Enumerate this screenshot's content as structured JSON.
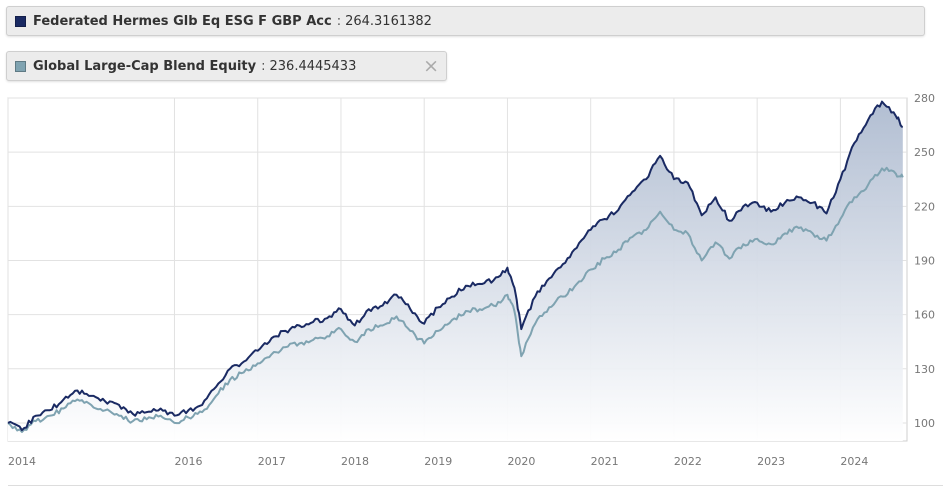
{
  "legend": [
    {
      "name": "Federated Hermes Glb Eq ESG F GBP Acc",
      "separator": ":",
      "value": "264.3161382",
      "color": "#1a2a63"
    },
    {
      "name": "Global Large-Cap Blend Equity",
      "separator": ":",
      "value": "236.4445433",
      "color": "#7fa3b1"
    }
  ],
  "close_icon": "×",
  "chart_data": {
    "type": "line",
    "x_tick_labels": [
      "2014",
      "2016",
      "2017",
      "2018",
      "2019",
      "2020",
      "2021",
      "2022",
      "2023",
      "2024"
    ],
    "y_ticks": [
      100,
      130,
      160,
      190,
      220,
      250,
      280
    ],
    "ylim": [
      90,
      280
    ],
    "grid": true,
    "y_axis_side": "right",
    "area_fill_under_first_series": true,
    "series": [
      {
        "name": "Federated Hermes Glb Eq ESG F GBP Acc",
        "color": "#1a2a63",
        "points": [
          [
            "2014-01",
            100
          ],
          [
            "2014-03",
            96
          ],
          [
            "2014-05",
            104
          ],
          [
            "2014-07",
            107
          ],
          [
            "2014-09",
            113
          ],
          [
            "2014-11",
            118
          ],
          [
            "2015-01",
            115
          ],
          [
            "2015-03",
            112
          ],
          [
            "2015-05",
            110
          ],
          [
            "2015-07",
            105
          ],
          [
            "2015-09",
            106
          ],
          [
            "2015-11",
            108
          ],
          [
            "2016-01",
            104
          ],
          [
            "2016-03",
            107
          ],
          [
            "2016-05",
            110
          ],
          [
            "2016-07",
            120
          ],
          [
            "2016-09",
            130
          ],
          [
            "2016-11",
            134
          ],
          [
            "2017-01",
            140
          ],
          [
            "2017-03",
            147
          ],
          [
            "2017-05",
            151
          ],
          [
            "2017-07",
            154
          ],
          [
            "2017-09",
            156
          ],
          [
            "2017-11",
            158
          ],
          [
            "2018-01",
            163
          ],
          [
            "2018-03",
            154
          ],
          [
            "2018-05",
            163
          ],
          [
            "2018-07",
            165
          ],
          [
            "2018-09",
            171
          ],
          [
            "2018-11",
            163
          ],
          [
            "2019-01",
            155
          ],
          [
            "2019-03",
            164
          ],
          [
            "2019-05",
            170
          ],
          [
            "2019-07",
            176
          ],
          [
            "2019-09",
            177
          ],
          [
            "2019-11",
            179
          ],
          [
            "2020-01",
            186
          ],
          [
            "2020-02",
            175
          ],
          [
            "2020-03",
            152
          ],
          [
            "2020-05",
            170
          ],
          [
            "2020-07",
            180
          ],
          [
            "2020-09",
            188
          ],
          [
            "2020-11",
            197
          ],
          [
            "2021-01",
            207
          ],
          [
            "2021-03",
            213
          ],
          [
            "2021-05",
            218
          ],
          [
            "2021-07",
            228
          ],
          [
            "2021-09",
            235
          ],
          [
            "2021-11",
            248
          ],
          [
            "2022-01",
            235
          ],
          [
            "2022-03",
            233
          ],
          [
            "2022-05",
            215
          ],
          [
            "2022-07",
            225
          ],
          [
            "2022-09",
            212
          ],
          [
            "2022-11",
            220
          ],
          [
            "2023-01",
            222
          ],
          [
            "2023-03",
            217
          ],
          [
            "2023-05",
            222
          ],
          [
            "2023-07",
            225
          ],
          [
            "2023-09",
            222
          ],
          [
            "2023-11",
            216
          ],
          [
            "2024-01",
            235
          ],
          [
            "2024-03",
            255
          ],
          [
            "2024-05",
            268
          ],
          [
            "2024-07",
            278
          ],
          [
            "2024-09",
            270
          ],
          [
            "2024-10",
            264
          ]
        ]
      },
      {
        "name": "Global Large-Cap Blend Equity",
        "color": "#7fa3b1",
        "points": [
          [
            "2014-01",
            100
          ],
          [
            "2014-03",
            95
          ],
          [
            "2014-05",
            101
          ],
          [
            "2014-07",
            104
          ],
          [
            "2014-09",
            108
          ],
          [
            "2014-11",
            113
          ],
          [
            "2015-01",
            110
          ],
          [
            "2015-03",
            107
          ],
          [
            "2015-05",
            104
          ],
          [
            "2015-07",
            101
          ],
          [
            "2015-09",
            102
          ],
          [
            "2015-11",
            104
          ],
          [
            "2016-01",
            100
          ],
          [
            "2016-03",
            103
          ],
          [
            "2016-05",
            106
          ],
          [
            "2016-07",
            115
          ],
          [
            "2016-09",
            124
          ],
          [
            "2016-11",
            128
          ],
          [
            "2017-01",
            133
          ],
          [
            "2017-03",
            138
          ],
          [
            "2017-05",
            142
          ],
          [
            "2017-07",
            144
          ],
          [
            "2017-09",
            146
          ],
          [
            "2017-11",
            148
          ],
          [
            "2018-01",
            152
          ],
          [
            "2018-03",
            145
          ],
          [
            "2018-05",
            152
          ],
          [
            "2018-07",
            154
          ],
          [
            "2018-09",
            159
          ],
          [
            "2018-11",
            151
          ],
          [
            "2019-01",
            144
          ],
          [
            "2019-03",
            151
          ],
          [
            "2019-05",
            157
          ],
          [
            "2019-07",
            162
          ],
          [
            "2019-09",
            163
          ],
          [
            "2019-11",
            165
          ],
          [
            "2020-01",
            171
          ],
          [
            "2020-02",
            162
          ],
          [
            "2020-03",
            137
          ],
          [
            "2020-05",
            155
          ],
          [
            "2020-07",
            164
          ],
          [
            "2020-09",
            170
          ],
          [
            "2020-11",
            177
          ],
          [
            "2021-01",
            185
          ],
          [
            "2021-03",
            191
          ],
          [
            "2021-05",
            196
          ],
          [
            "2021-07",
            203
          ],
          [
            "2021-09",
            207
          ],
          [
            "2021-11",
            217
          ],
          [
            "2022-01",
            207
          ],
          [
            "2022-03",
            205
          ],
          [
            "2022-05",
            190
          ],
          [
            "2022-07",
            200
          ],
          [
            "2022-09",
            191
          ],
          [
            "2022-11",
            199
          ],
          [
            "2023-01",
            202
          ],
          [
            "2023-03",
            199
          ],
          [
            "2023-05",
            205
          ],
          [
            "2023-07",
            208
          ],
          [
            "2023-09",
            205
          ],
          [
            "2023-11",
            201
          ],
          [
            "2024-01",
            213
          ],
          [
            "2024-03",
            225
          ],
          [
            "2024-05",
            232
          ],
          [
            "2024-07",
            241
          ],
          [
            "2024-09",
            238
          ],
          [
            "2024-10",
            236
          ]
        ]
      }
    ]
  }
}
